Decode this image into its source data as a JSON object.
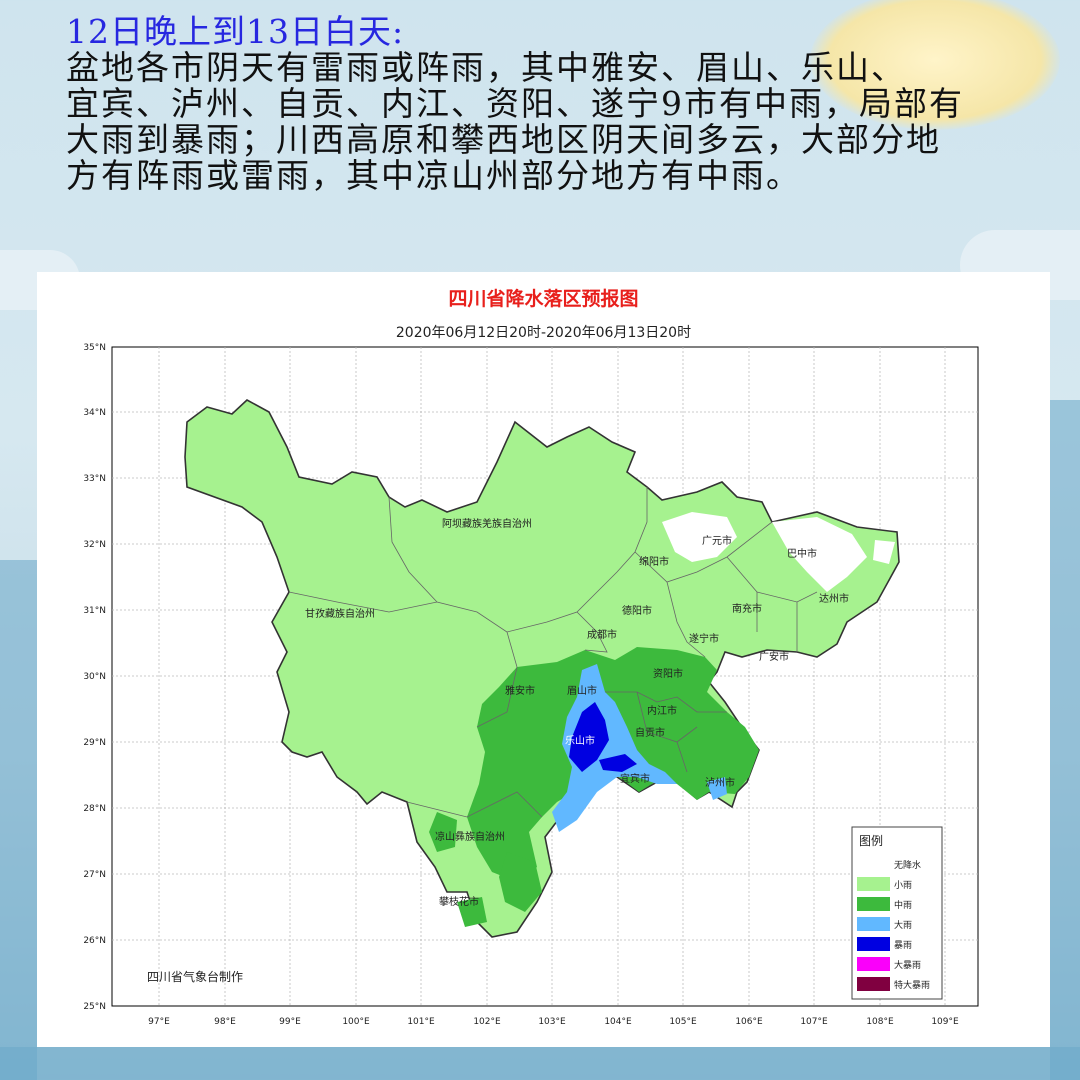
{
  "headline": {
    "title": "12日晚上到13日白天:",
    "lines": [
      "盆地各市阴天有雷雨或阵雨，其中雅安、眉山、乐山、",
      "宜宾、泸州、自贡、内江、资阳、遂宁9市有中雨，局部有",
      "大雨到暴雨；川西高原和攀西地区阴天间多云，大部分地",
      "方有阵雨或雷雨，其中凉山州部分地方有中雨。"
    ]
  },
  "map": {
    "title": "四川省降水落区预报图",
    "subtitle": "2020年06月12日20时-2020年06月13日20时",
    "credit": "四川省气象台制作",
    "lat_labels": [
      "35°N",
      "34°N",
      "33°N",
      "32°N",
      "31°N",
      "30°N",
      "29°N",
      "28°N",
      "27°N",
      "26°N",
      "25°N"
    ],
    "lon_labels": [
      "97°E",
      "98°E",
      "99°E",
      "100°E",
      "101°E",
      "102°E",
      "103°E",
      "104°E",
      "105°E",
      "106°E",
      "107°E",
      "108°E",
      "109°E"
    ],
    "regions": {
      "aba": "阿坝藏族羌族自治州",
      "ganzi": "甘孜藏族自治州",
      "liangshan": "凉山彝族自治州",
      "guangyuan": "广元市",
      "bazhong": "巴中市",
      "mianyang": "绵阳市",
      "dazhou": "达州市",
      "nanchong": "南充市",
      "deyang": "德阳市",
      "chengdu": "成都市",
      "suining": "遂宁市",
      "guangan": "广安市",
      "ziyang": "资阳市",
      "yaan": "雅安市",
      "meishan": "眉山市",
      "neijiang": "内江市",
      "leshan": "乐山市",
      "zigong": "自贡市",
      "yibin": "宜宾市",
      "luzhou": "泸州市",
      "panzhihua": "攀枝花市"
    },
    "legend": {
      "title": "图例",
      "items": [
        {
          "label": "无降水",
          "color": "#ffffff"
        },
        {
          "label": "小雨",
          "color": "#a6f28f"
        },
        {
          "label": "中雨",
          "color": "#3dba3d"
        },
        {
          "label": "大雨",
          "color": "#61b8ff"
        },
        {
          "label": "暴雨",
          "color": "#0000e1"
        },
        {
          "label": "大暴雨",
          "color": "#fa00fa"
        },
        {
          "label": "特大暴雨",
          "color": "#800040"
        }
      ]
    }
  }
}
